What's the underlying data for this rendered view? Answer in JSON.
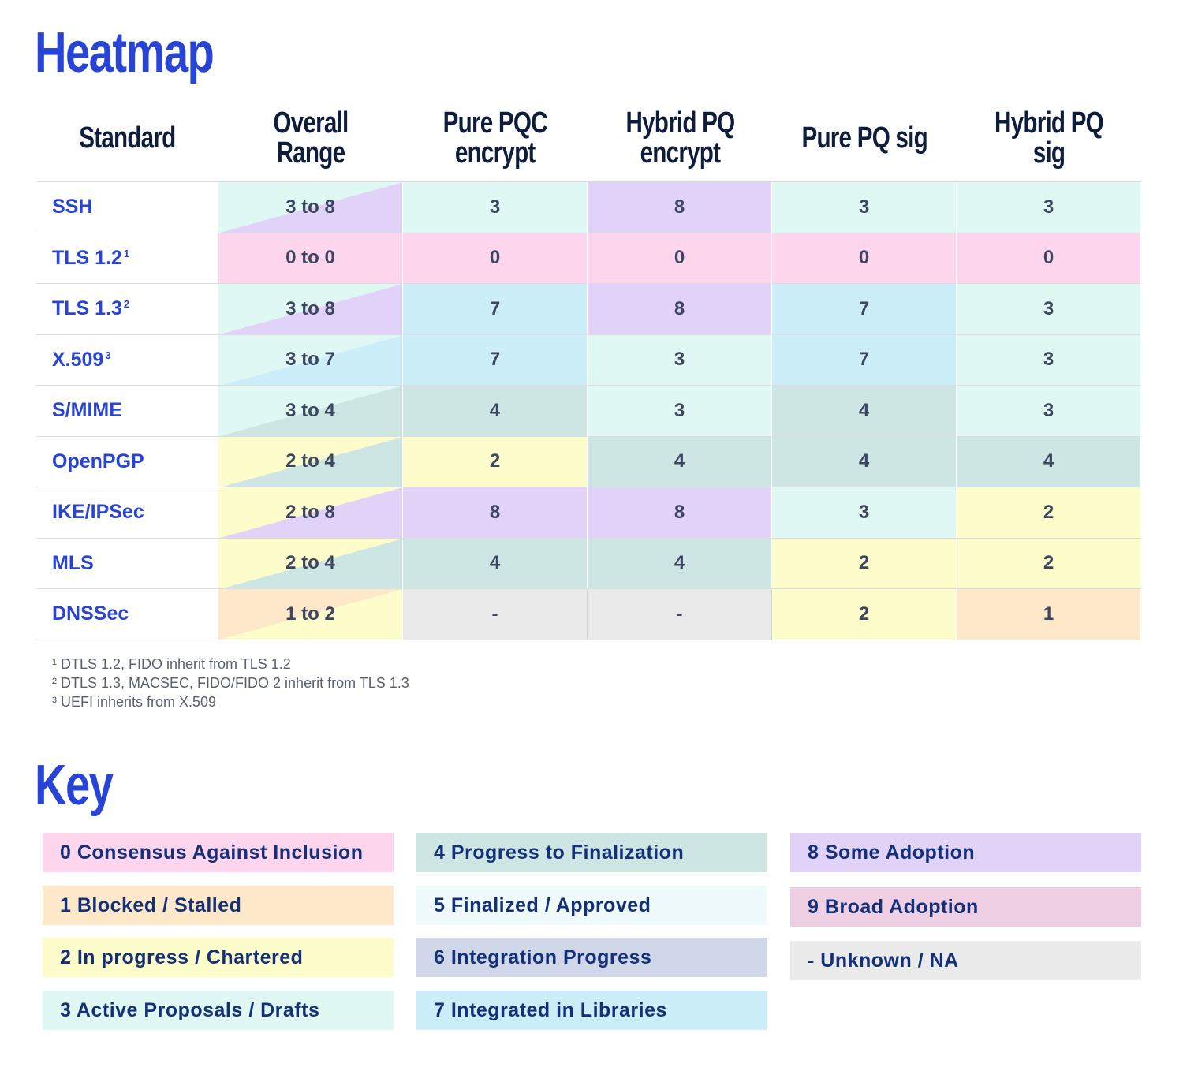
{
  "heatmap_title": "Heatmap",
  "key_title": "Key",
  "colors": {
    "0": "#fdd5ec",
    "1": "#fde8c9",
    "2": "#fdfccb",
    "3": "#dff8f4",
    "4": "#cde6e3",
    "5": "#eefafc",
    "6": "#cfd7e8",
    "7": "#cbeef8",
    "8": "#e1d2f7",
    "9": "#efcfe4",
    "-": "#eaeaea"
  },
  "chart_data": {
    "type": "heatmap",
    "title": "Heatmap",
    "columns": [
      "Standard",
      "Overall\nRange",
      "Pure PQC\nencrypt",
      "Hybrid PQ\nencrypt",
      "Pure PQ sig",
      "Hybrid PQ sig"
    ],
    "rows": [
      {
        "standard": "SSH",
        "sup": "",
        "range": "3 to 8",
        "range_low": "3",
        "range_high": "8",
        "values": [
          "3",
          "8",
          "3",
          "3"
        ]
      },
      {
        "standard": "TLS 1.2",
        "sup": "1",
        "range": "0 to 0",
        "range_low": "0",
        "range_high": "0",
        "values": [
          "0",
          "0",
          "0",
          "0"
        ]
      },
      {
        "standard": "TLS 1.3",
        "sup": "2",
        "range": "3 to 8",
        "range_low": "3",
        "range_high": "8",
        "values": [
          "7",
          "8",
          "7",
          "3"
        ]
      },
      {
        "standard": "X.509",
        "sup": "3",
        "range": "3 to 7",
        "range_low": "3",
        "range_high": "7",
        "values": [
          "7",
          "3",
          "7",
          "3"
        ]
      },
      {
        "standard": "S/MIME",
        "sup": "",
        "range": "3 to 4",
        "range_low": "3",
        "range_high": "4",
        "values": [
          "4",
          "3",
          "4",
          "3"
        ]
      },
      {
        "standard": "OpenPGP",
        "sup": "",
        "range": "2 to 4",
        "range_low": "2",
        "range_high": "4",
        "values": [
          "2",
          "4",
          "4",
          "4"
        ]
      },
      {
        "standard": "IKE/IPSec",
        "sup": "",
        "range": "2 to 8",
        "range_low": "2",
        "range_high": "8",
        "values": [
          "8",
          "8",
          "3",
          "2"
        ]
      },
      {
        "standard": "MLS",
        "sup": "",
        "range": "2 to 4",
        "range_low": "2",
        "range_high": "4",
        "values": [
          "4",
          "4",
          "2",
          "2"
        ]
      },
      {
        "standard": "DNSSec",
        "sup": "",
        "range": "1 to 2",
        "range_low": "1",
        "range_high": "2",
        "values": [
          "-",
          "-",
          "2",
          "1"
        ]
      }
    ]
  },
  "footnotes": [
    "¹ DTLS 1.2, FIDO inherit from TLS 1.2",
    "² DTLS 1.3, MACSEC, FIDO/FIDO 2 inherit from TLS 1.3",
    "³ UEFI inherits from X.509"
  ],
  "key": [
    {
      "level": "0",
      "label": "0 Consensus Against Inclusion"
    },
    {
      "level": "1",
      "label": "1 Blocked / Stalled"
    },
    {
      "level": "2",
      "label": "2 In progress / Chartered"
    },
    {
      "level": "3",
      "label": "3 Active Proposals / Drafts"
    },
    {
      "level": "4",
      "label": "4 Progress to Finalization"
    },
    {
      "level": "5",
      "label": "5 Finalized / Approved"
    },
    {
      "level": "6",
      "label": "6 Integration Progress"
    },
    {
      "level": "7",
      "label": "7 Integrated in Libraries"
    },
    {
      "level": "8",
      "label": "8 Some Adoption"
    },
    {
      "level": "9",
      "label": "9 Broad Adoption"
    },
    {
      "level": "-",
      "label": "- Unknown / NA"
    }
  ]
}
